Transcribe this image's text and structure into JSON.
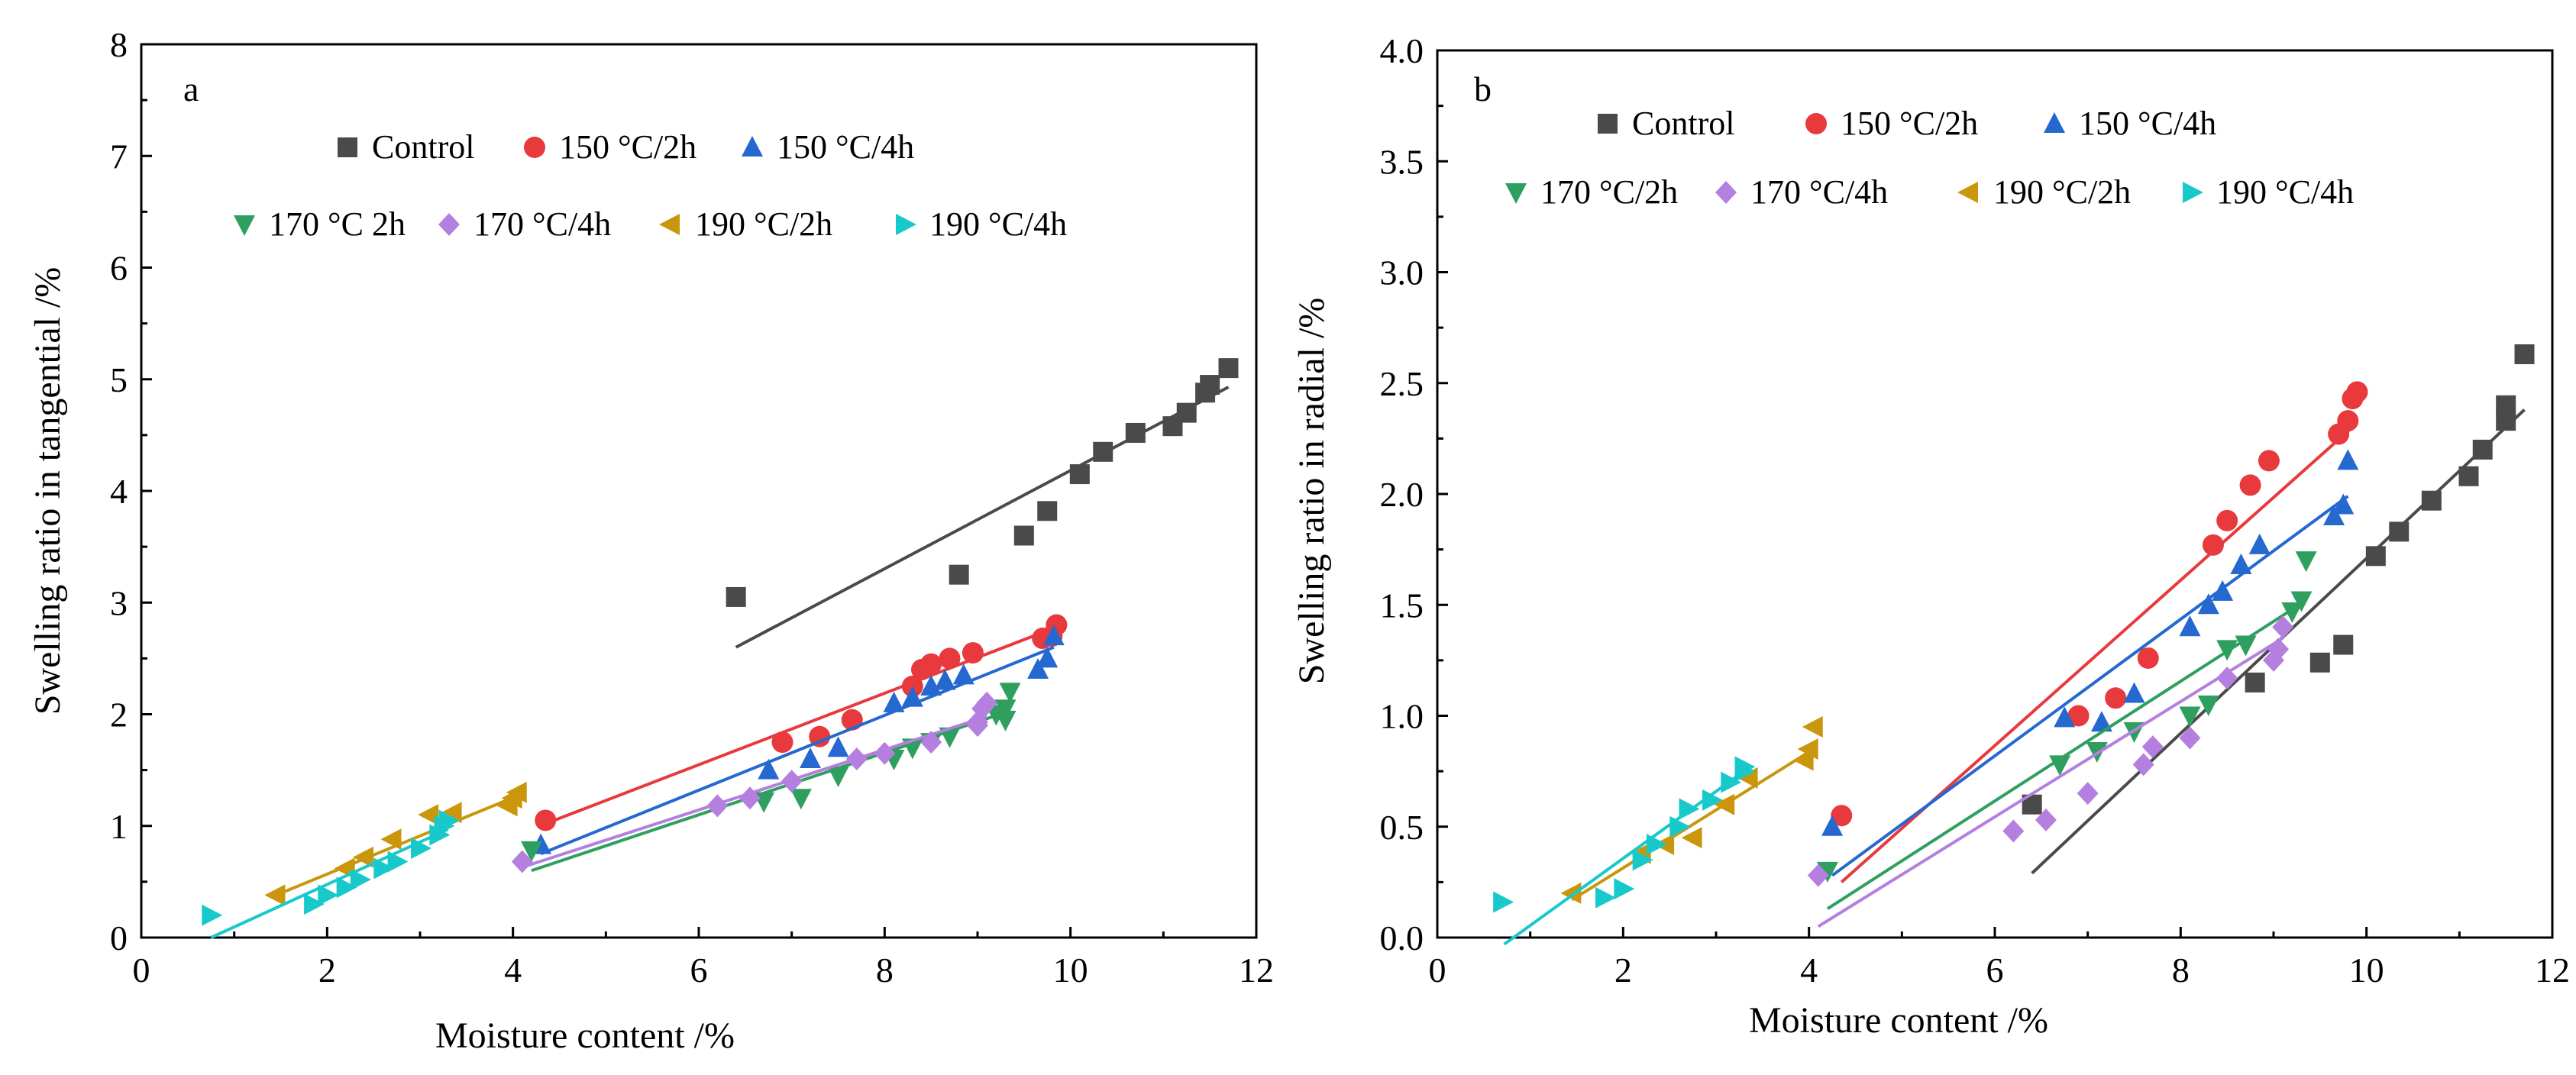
{
  "chart_data": [
    {
      "type": "scatter",
      "panel": "a",
      "xlabel": "Moisture content /%",
      "ylabel": "Swelling ratio in tangential /%",
      "xlim": [
        0,
        12
      ],
      "ylim": [
        0,
        8
      ],
      "xticks": [
        0,
        2,
        4,
        6,
        8,
        10,
        12
      ],
      "yticks": [
        0,
        1,
        2,
        3,
        4,
        5,
        6,
        7,
        8
      ],
      "series": [
        {
          "name": "Control",
          "color": "#4a4a4a",
          "marker": "square",
          "points": [
            [
              6.4,
              3.05
            ],
            [
              8.8,
              3.25
            ],
            [
              9.5,
              3.6
            ],
            [
              9.75,
              3.82
            ],
            [
              10.1,
              4.15
            ],
            [
              10.35,
              4.35
            ],
            [
              10.7,
              4.52
            ],
            [
              11.1,
              4.58
            ],
            [
              11.25,
              4.7
            ],
            [
              11.45,
              4.88
            ],
            [
              11.5,
              4.95
            ],
            [
              11.7,
              5.1
            ]
          ],
          "fit": [
            [
              6.4,
              2.6
            ],
            [
              11.7,
              4.93
            ]
          ]
        },
        {
          "name": "150 °C/2h",
          "color": "#e8393d",
          "marker": "circle",
          "points": [
            [
              4.35,
              1.05
            ],
            [
              6.9,
              1.75
            ],
            [
              7.3,
              1.8
            ],
            [
              7.65,
              1.95
            ],
            [
              8.3,
              2.25
            ],
            [
              8.4,
              2.4
            ],
            [
              8.5,
              2.45
            ],
            [
              8.7,
              2.5
            ],
            [
              8.95,
              2.55
            ],
            [
              9.7,
              2.68
            ],
            [
              9.8,
              2.7
            ],
            [
              9.85,
              2.8
            ]
          ],
          "fit": [
            [
              4.35,
              1.02
            ],
            [
              9.85,
              2.78
            ]
          ]
        },
        {
          "name": "150 °C/4h",
          "color": "#2468d0",
          "marker": "triangle-up",
          "points": [
            [
              4.3,
              0.83
            ],
            [
              6.75,
              1.5
            ],
            [
              7.2,
              1.6
            ],
            [
              7.5,
              1.7
            ],
            [
              8.1,
              2.1
            ],
            [
              8.3,
              2.15
            ],
            [
              8.5,
              2.25
            ],
            [
              8.65,
              2.3
            ],
            [
              8.85,
              2.35
            ],
            [
              9.65,
              2.4
            ],
            [
              9.75,
              2.5
            ],
            [
              9.82,
              2.7
            ]
          ],
          "fit": [
            [
              4.3,
              0.75
            ],
            [
              9.82,
              2.6
            ]
          ]
        },
        {
          "name": "170 °C 2h",
          "color": "#2e9f5e",
          "marker": "triangle-down",
          "points": [
            [
              4.2,
              0.78
            ],
            [
              6.7,
              1.22
            ],
            [
              7.1,
              1.25
            ],
            [
              7.5,
              1.45
            ],
            [
              8.1,
              1.6
            ],
            [
              8.3,
              1.7
            ],
            [
              8.5,
              1.75
            ],
            [
              8.7,
              1.8
            ],
            [
              9.2,
              2.0
            ],
            [
              9.3,
              2.05
            ],
            [
              9.35,
              2.2
            ],
            [
              9.3,
              1.95
            ]
          ],
          "fit": [
            [
              4.2,
              0.6
            ],
            [
              9.35,
              2.03
            ]
          ]
        },
        {
          "name": "170 °C/4h",
          "color": "#b57fe0",
          "marker": "diamond",
          "points": [
            [
              4.1,
              0.68
            ],
            [
              6.2,
              1.18
            ],
            [
              6.55,
              1.25
            ],
            [
              7.0,
              1.4
            ],
            [
              7.7,
              1.6
            ],
            [
              8.0,
              1.65
            ],
            [
              8.5,
              1.75
            ],
            [
              9.0,
              1.93
            ],
            [
              9.05,
              2.05
            ],
            [
              9.1,
              2.1
            ],
            [
              9.0,
              1.9
            ]
          ],
          "fit": [
            [
              4.1,
              0.63
            ],
            [
              9.1,
              1.98
            ]
          ]
        },
        {
          "name": "190 °C/2h",
          "color": "#c9960c",
          "marker": "triangle-left",
          "points": [
            [
              1.45,
              0.38
            ],
            [
              2.2,
              0.62
            ],
            [
              2.4,
              0.72
            ],
            [
              2.7,
              0.88
            ],
            [
              3.1,
              1.1
            ],
            [
              3.35,
              1.12
            ],
            [
              3.95,
              1.18
            ],
            [
              4.0,
              1.25
            ],
            [
              4.05,
              1.3
            ]
          ],
          "fit": [
            [
              1.45,
              0.38
            ],
            [
              4.05,
              1.27
            ]
          ]
        },
        {
          "name": "190 °C/4h",
          "color": "#18c9cc",
          "marker": "triangle-right",
          "points": [
            [
              0.75,
              0.2
            ],
            [
              1.85,
              0.3
            ],
            [
              2.0,
              0.38
            ],
            [
              2.2,
              0.45
            ],
            [
              2.35,
              0.52
            ],
            [
              2.6,
              0.62
            ],
            [
              2.75,
              0.68
            ],
            [
              3.0,
              0.8
            ],
            [
              3.2,
              0.92
            ],
            [
              3.25,
              1.0
            ],
            [
              3.3,
              1.05
            ]
          ],
          "fit": [
            [
              0.75,
              0.0
            ],
            [
              3.3,
              0.97
            ]
          ]
        }
      ],
      "legend": [
        [
          "Control",
          "150 °C/2h",
          "150 °C/4h"
        ],
        [
          "170 °C 2h",
          "170 °C/4h",
          "190 °C/2h",
          "190 °C/4h"
        ]
      ]
    },
    {
      "type": "scatter",
      "panel": "b",
      "xlabel": "Moisture content /%",
      "ylabel": "Swelling ratio in radial /%",
      "xlim": [
        0,
        12
      ],
      "ylim": [
        0,
        4
      ],
      "xticks": [
        0,
        2,
        4,
        6,
        8,
        10,
        12
      ],
      "yticks": [
        "0.0",
        "0.5",
        "1.0",
        "1.5",
        "2.0",
        "2.5",
        "3.0",
        "3.5",
        "4.0"
      ],
      "series": [
        {
          "name": "Control",
          "color": "#4a4a4a",
          "marker": "square",
          "points": [
            [
              6.4,
              0.6
            ],
            [
              8.8,
              1.15
            ],
            [
              9.5,
              1.24
            ],
            [
              9.75,
              1.32
            ],
            [
              10.1,
              1.72
            ],
            [
              10.35,
              1.83
            ],
            [
              10.7,
              1.97
            ],
            [
              11.1,
              2.08
            ],
            [
              11.25,
              2.2
            ],
            [
              11.5,
              2.33
            ],
            [
              11.5,
              2.4
            ],
            [
              11.7,
              2.63
            ]
          ],
          "fit": [
            [
              6.4,
              0.29
            ],
            [
              11.7,
              2.38
            ]
          ]
        },
        {
          "name": "150 °C/2h",
          "color": "#e8393d",
          "marker": "circle",
          "points": [
            [
              4.35,
              0.55
            ],
            [
              6.9,
              1.0
            ],
            [
              7.3,
              1.08
            ],
            [
              7.65,
              1.26
            ],
            [
              8.35,
              1.77
            ],
            [
              8.5,
              1.88
            ],
            [
              8.75,
              2.04
            ],
            [
              8.95,
              2.15
            ],
            [
              9.7,
              2.27
            ],
            [
              9.8,
              2.33
            ],
            [
              9.85,
              2.43
            ],
            [
              9.9,
              2.46
            ]
          ],
          "fit": [
            [
              4.35,
              0.25
            ],
            [
              9.9,
              2.32
            ]
          ]
        },
        {
          "name": "150 °C/4h",
          "color": "#2468d0",
          "marker": "triangle-up",
          "points": [
            [
              4.25,
              0.5
            ],
            [
              6.75,
              0.99
            ],
            [
              7.15,
              0.97
            ],
            [
              7.5,
              1.1
            ],
            [
              8.1,
              1.4
            ],
            [
              8.3,
              1.5
            ],
            [
              8.45,
              1.56
            ],
            [
              8.65,
              1.68
            ],
            [
              8.85,
              1.77
            ],
            [
              9.65,
              1.9
            ],
            [
              9.75,
              1.95
            ],
            [
              9.8,
              2.15
            ]
          ],
          "fit": [
            [
              4.25,
              0.28
            ],
            [
              9.8,
              1.99
            ]
          ]
        },
        {
          "name": "170 °C/2h",
          "color": "#2e9f5e",
          "marker": "triangle-down",
          "points": [
            [
              4.2,
              0.3
            ],
            [
              6.7,
              0.78
            ],
            [
              7.1,
              0.84
            ],
            [
              7.5,
              0.93
            ],
            [
              8.1,
              1.0
            ],
            [
              8.3,
              1.05
            ],
            [
              8.5,
              1.3
            ],
            [
              8.7,
              1.32
            ],
            [
              9.2,
              1.47
            ],
            [
              9.3,
              1.52
            ],
            [
              9.35,
              1.7
            ]
          ],
          "fit": [
            [
              4.2,
              0.13
            ],
            [
              9.35,
              1.52
            ]
          ]
        },
        {
          "name": "170 °C/4h",
          "color": "#b57fe0",
          "marker": "diamond",
          "points": [
            [
              4.1,
              0.28
            ],
            [
              6.2,
              0.48
            ],
            [
              6.55,
              0.53
            ],
            [
              7.0,
              0.65
            ],
            [
              7.6,
              0.78
            ],
            [
              7.7,
              0.86
            ],
            [
              8.1,
              0.9
            ],
            [
              8.5,
              1.17
            ],
            [
              9.0,
              1.25
            ],
            [
              9.05,
              1.3
            ],
            [
              9.1,
              1.4
            ]
          ],
          "fit": [
            [
              4.1,
              0.05
            ],
            [
              9.1,
              1.35
            ]
          ]
        },
        {
          "name": "190 °C/2h",
          "color": "#c9960c",
          "marker": "triangle-left",
          "points": [
            [
              1.45,
              0.2
            ],
            [
              2.2,
              0.38
            ],
            [
              2.45,
              0.42
            ],
            [
              2.75,
              0.45
            ],
            [
              3.1,
              0.6
            ],
            [
              3.35,
              0.72
            ],
            [
              3.95,
              0.8
            ],
            [
              4.0,
              0.85
            ],
            [
              4.05,
              0.95
            ]
          ],
          "fit": [
            [
              1.45,
              0.17
            ],
            [
              4.05,
              0.85
            ]
          ]
        },
        {
          "name": "190 °C/4h",
          "color": "#18c9cc",
          "marker": "triangle-right",
          "points": [
            [
              0.7,
              0.16
            ],
            [
              1.8,
              0.18
            ],
            [
              2.0,
              0.22
            ],
            [
              2.2,
              0.35
            ],
            [
              2.35,
              0.42
            ],
            [
              2.6,
              0.5
            ],
            [
              2.7,
              0.58
            ],
            [
              2.95,
              0.62
            ],
            [
              3.15,
              0.7
            ],
            [
              3.3,
              0.75
            ],
            [
              3.3,
              0.77
            ]
          ],
          "fit": [
            [
              0.72,
              -0.03
            ],
            [
              3.3,
              0.75
            ]
          ]
        }
      ],
      "legend": [
        [
          "Control",
          "150 °C/2h",
          "150 °C/4h"
        ],
        [
          "170 °C/2h",
          "170 °C/4h",
          "190 °C/2h",
          "190 °C/4h"
        ]
      ]
    }
  ]
}
